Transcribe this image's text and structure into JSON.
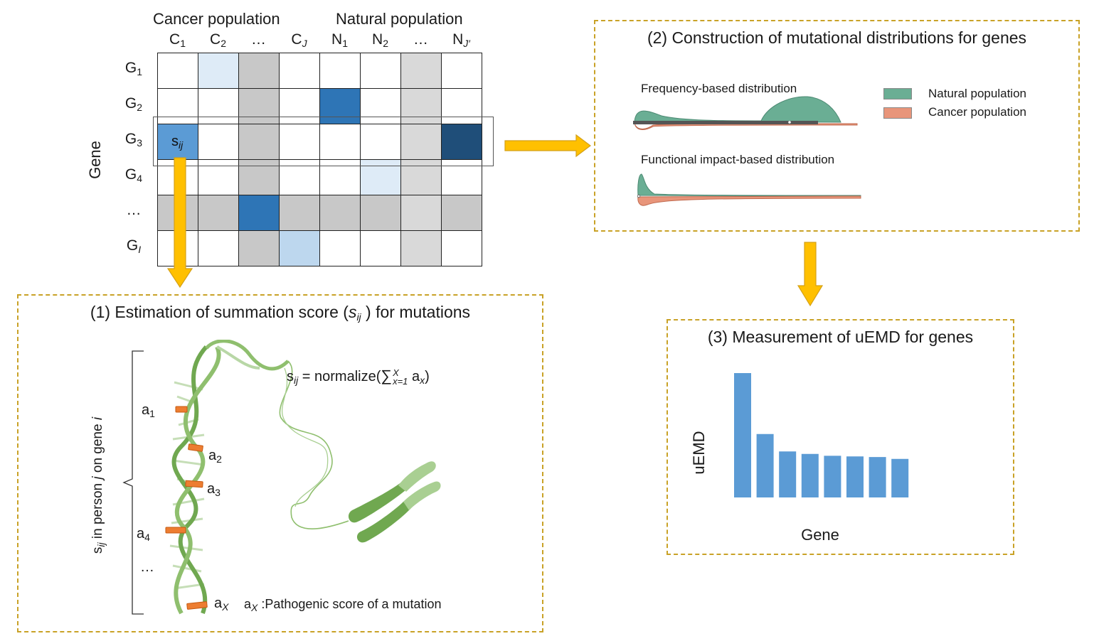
{
  "matrix": {
    "cancer_population_label": "Cancer population",
    "natural_population_label": "Natural population",
    "gene_axis_label": "Gene",
    "columns": [
      {
        "base": "C",
        "sub": "1",
        "italic": false
      },
      {
        "base": "C",
        "sub": "2",
        "italic": false
      },
      {
        "base": "…",
        "sub": "",
        "italic": false
      },
      {
        "base": "C",
        "sub": "J",
        "italic": true
      },
      {
        "base": "N",
        "sub": "1",
        "italic": false
      },
      {
        "base": "N",
        "sub": "2",
        "italic": false
      },
      {
        "base": "…",
        "sub": "",
        "italic": false
      },
      {
        "base": "N",
        "sub": "J′",
        "italic": true
      }
    ],
    "rows": [
      {
        "base": "G",
        "sub": "1",
        "italic": false
      },
      {
        "base": "G",
        "sub": "2",
        "italic": false
      },
      {
        "base": "G",
        "sub": "3",
        "italic": false
      },
      {
        "base": "G",
        "sub": "4",
        "italic": false
      },
      {
        "base": "…",
        "sub": "",
        "italic": false
      },
      {
        "base": "G",
        "sub": "I",
        "italic": true
      }
    ],
    "cell_label": {
      "base": "s",
      "sub": "ij"
    },
    "cells": [
      [
        "#ffffff",
        "#deebf7",
        "#c8c8c8",
        "#ffffff",
        "#ffffff",
        "#ffffff",
        "#d9d9d9",
        "#ffffff"
      ],
      [
        "#ffffff",
        "#ffffff",
        "#c8c8c8",
        "#ffffff",
        "#2e75b6",
        "#ffffff",
        "#d9d9d9",
        "#ffffff"
      ],
      [
        "#5b9bd5",
        "#ffffff",
        "#c8c8c8",
        "#ffffff",
        "#ffffff",
        "#ffffff",
        "#d9d9d9",
        "#1f4e79"
      ],
      [
        "#ffffff",
        "#ffffff",
        "#c8c8c8",
        "#ffffff",
        "#ffffff",
        "#deebf7",
        "#d9d9d9",
        "#ffffff"
      ],
      [
        "#c8c8c8",
        "#c8c8c8",
        "#2e75b6",
        "#c8c8c8",
        "#c8c8c8",
        "#c8c8c8",
        "#d9d9d9",
        "#c8c8c8"
      ],
      [
        "#ffffff",
        "#ffffff",
        "#c8c8c8",
        "#bdd7ee",
        "#ffffff",
        "#ffffff",
        "#d9d9d9",
        "#ffffff"
      ]
    ]
  },
  "panel1": {
    "title_pre": "(1) Estimation of summation score (",
    "title_s": "s",
    "title_sub": "ij",
    "title_post": " ) for mutations",
    "formula_s": "s",
    "formula_sub": "ij",
    "formula_eq": " = normalize(",
    "formula_sum": "∑",
    "formula_upper": "X",
    "formula_lower": "x=1",
    "formula_a": " a",
    "formula_a_sub": "x",
    "formula_close": ")",
    "brace_label_s": "s",
    "brace_label_sub": "ij",
    "brace_label_mid1": " in person ",
    "brace_label_j": "j",
    "brace_label_mid2": " on gene ",
    "brace_label_i": "i",
    "annotations": [
      {
        "base": "a",
        "sub": "1",
        "italic": false
      },
      {
        "base": "a",
        "sub": "2",
        "italic": false
      },
      {
        "base": "a",
        "sub": "3",
        "italic": false
      },
      {
        "base": "a",
        "sub": "4",
        "italic": false
      },
      {
        "base": "…",
        "sub": "",
        "italic": false
      },
      {
        "base": "a",
        "sub": "X",
        "italic": true
      }
    ],
    "legend_a": "a",
    "legend_sub": "X",
    "legend_text": " :Pathogenic score of a mutation"
  },
  "panel2": {
    "title": "(2) Construction of mutational distributions for genes",
    "freq_label": "Frequency-based distribution",
    "func_label": "Functional impact-based distribution",
    "legend": [
      {
        "name": "Natural population",
        "color": "#6aae94"
      },
      {
        "name": "Cancer  population",
        "color": "#e8957a"
      }
    ]
  },
  "panel3": {
    "title": "(3) Measurement of uEMD for genes",
    "chart_data": {
      "type": "bar",
      "xlabel": "Gene",
      "ylabel": "uEMD",
      "values": [
        1.0,
        0.51,
        0.37,
        0.35,
        0.335,
        0.33,
        0.325,
        0.31
      ],
      "color": "#5b9bd5"
    }
  },
  "colors": {
    "arrow": "#ffc000",
    "arrow_edge": "#d4a017",
    "dashed_border": "#c9a227",
    "dna": "#70a850",
    "mutation": "#ed7d31"
  }
}
